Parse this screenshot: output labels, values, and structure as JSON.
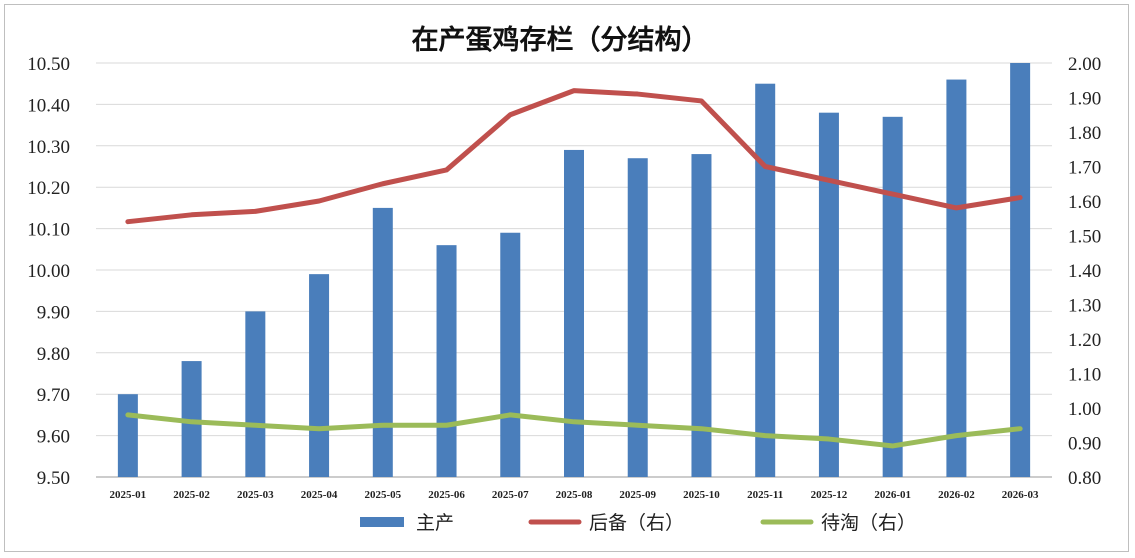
{
  "chart_data": {
    "type": "bar",
    "title": "在产蛋鸡存栏（分结构）",
    "categories": [
      "2025-01",
      "2025-02",
      "2025-03",
      "2025-04",
      "2025-05",
      "2025-06",
      "2025-07",
      "2025-08",
      "2025-09",
      "2025-10",
      "2025-11",
      "2025-12",
      "2026-01",
      "2026-02",
      "2026-03"
    ],
    "series": [
      {
        "name": "主产",
        "type": "bar",
        "axis": "left",
        "color": "#4a7ebb",
        "values": [
          9.7,
          9.78,
          9.9,
          9.99,
          10.15,
          10.06,
          10.09,
          10.29,
          10.27,
          10.28,
          10.45,
          10.38,
          10.37,
          10.46,
          10.5
        ]
      },
      {
        "name": "后备（右）",
        "type": "line",
        "axis": "right",
        "color": "#c0504d",
        "values": [
          1.54,
          1.56,
          1.57,
          1.6,
          1.65,
          1.69,
          1.85,
          1.92,
          1.91,
          1.89,
          1.7,
          1.66,
          1.62,
          1.58,
          1.61
        ]
      },
      {
        "name": "待淘（右）",
        "type": "line",
        "axis": "right",
        "color": "#9bbb59",
        "values": [
          0.98,
          0.96,
          0.95,
          0.94,
          0.95,
          0.95,
          0.98,
          0.96,
          0.95,
          0.94,
          0.92,
          0.91,
          0.89,
          0.92,
          0.94
        ]
      }
    ],
    "y_left": {
      "min": 9.5,
      "max": 10.5,
      "ticks": [
        "9.50",
        "9.60",
        "9.70",
        "9.80",
        "9.90",
        "10.00",
        "10.10",
        "10.20",
        "10.30",
        "10.40",
        "10.50"
      ]
    },
    "y_right": {
      "min": 0.8,
      "max": 2.0,
      "ticks": [
        "0.80",
        "0.90",
        "1.00",
        "1.10",
        "1.20",
        "1.30",
        "1.40",
        "1.50",
        "1.60",
        "1.70",
        "1.80",
        "1.90",
        "2.00"
      ]
    },
    "grid": true,
    "legend": "bottom"
  }
}
